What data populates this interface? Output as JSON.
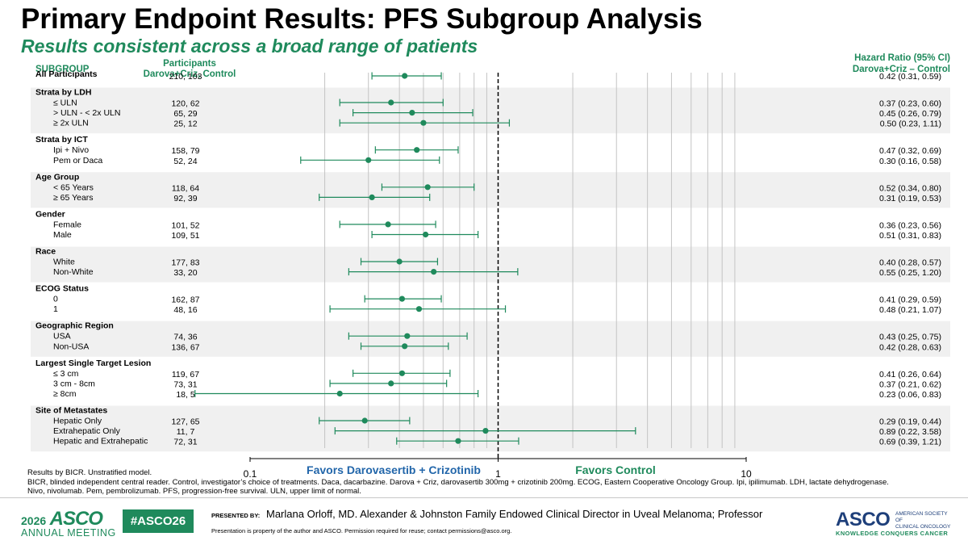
{
  "title": "Primary Endpoint Results: PFS Subgroup Analysis",
  "subtitle": "Results consistent across a broad range of patients",
  "headers": {
    "subgroup": "SUBGROUP",
    "participants_line1": "Participants",
    "participants_line2": "Darova+Criz, Control",
    "hr_line1": "Hazard Ratio (95% CI)",
    "hr_line2": "Darova+Criz – Control"
  },
  "colors": {
    "accent": "#1f8a5c",
    "band": "#f0f0f0",
    "navy": "#1e3f7a",
    "dashed_line": "#000000"
  },
  "chart_data": {
    "type": "forest",
    "x_scale": "log",
    "xlim": [
      0.1,
      10
    ],
    "x_ticks": [
      {
        "value": 0.1,
        "label": "0.1"
      },
      {
        "value": 1,
        "label": "1"
      },
      {
        "value": 10,
        "label": "10"
      }
    ],
    "reference_line": 1,
    "favors_left": "Favors Darovasertib + Crizotinib",
    "favors_right": "Favors Control",
    "groups": [
      {
        "label": "All Participants",
        "rows": [
          {
            "label": "",
            "n": "210, 103",
            "hr": 0.42,
            "lo": 0.31,
            "hi": 0.59,
            "text": "0.42 (0.31, 0.59)"
          }
        ]
      },
      {
        "label": "Strata by LDH",
        "rows": [
          {
            "label": "≤  ULN",
            "n": "120, 62",
            "hr": 0.37,
            "lo": 0.23,
            "hi": 0.6,
            "text": "0.37 (0.23, 0.60)"
          },
          {
            "label": "> ULN - < 2x ULN",
            "n": "65, 29",
            "hr": 0.45,
            "lo": 0.26,
            "hi": 0.79,
            "text": "0.45 (0.26, 0.79)"
          },
          {
            "label": "≥  2x ULN",
            "n": "25, 12",
            "hr": 0.5,
            "lo": 0.23,
            "hi": 1.11,
            "text": "0.50 (0.23, 1.11)"
          }
        ]
      },
      {
        "label": "Strata by ICT",
        "rows": [
          {
            "label": "Ipi + Nivo",
            "n": "158, 79",
            "hr": 0.47,
            "lo": 0.32,
            "hi": 0.69,
            "text": "0.47 (0.32, 0.69)"
          },
          {
            "label": "Pem or Daca",
            "n": "52, 24",
            "hr": 0.3,
            "lo": 0.16,
            "hi": 0.58,
            "text": "0.30 (0.16, 0.58)"
          }
        ]
      },
      {
        "label": "Age Group",
        "rows": [
          {
            "label": "< 65 Years",
            "n": "118, 64",
            "hr": 0.52,
            "lo": 0.34,
            "hi": 0.8,
            "text": "0.52 (0.34, 0.80)"
          },
          {
            "label": "≥  65 Years",
            "n": "92, 39",
            "hr": 0.31,
            "lo": 0.19,
            "hi": 0.53,
            "text": "0.31 (0.19, 0.53)"
          }
        ]
      },
      {
        "label": "Gender",
        "rows": [
          {
            "label": "Female",
            "n": "101, 52",
            "hr": 0.36,
            "lo": 0.23,
            "hi": 0.56,
            "text": "0.36 (0.23, 0.56)"
          },
          {
            "label": "Male",
            "n": "109, 51",
            "hr": 0.51,
            "lo": 0.31,
            "hi": 0.83,
            "text": "0.51 (0.31, 0.83)"
          }
        ]
      },
      {
        "label": "Race",
        "rows": [
          {
            "label": "White",
            "n": "177, 83",
            "hr": 0.4,
            "lo": 0.28,
            "hi": 0.57,
            "text": "0.40 (0.28, 0.57)"
          },
          {
            "label": "Non-White",
            "n": "33, 20",
            "hr": 0.55,
            "lo": 0.25,
            "hi": 1.2,
            "text": "0.55 (0.25, 1.20)"
          }
        ]
      },
      {
        "label": "ECOG Status",
        "rows": [
          {
            "label": "0",
            "n": "162, 87",
            "hr": 0.41,
            "lo": 0.29,
            "hi": 0.59,
            "text": "0.41 (0.29, 0.59)"
          },
          {
            "label": "1",
            "n": "48, 16",
            "hr": 0.48,
            "lo": 0.21,
            "hi": 1.07,
            "text": "0.48 (0.21, 1.07)"
          }
        ]
      },
      {
        "label": "Geographic Region",
        "rows": [
          {
            "label": "USA",
            "n": "74, 36",
            "hr": 0.43,
            "lo": 0.25,
            "hi": 0.75,
            "text": "0.43 (0.25, 0.75)"
          },
          {
            "label": "Non-USA",
            "n": "136, 67",
            "hr": 0.42,
            "lo": 0.28,
            "hi": 0.63,
            "text": "0.42 (0.28, 0.63)"
          }
        ]
      },
      {
        "label": "Largest Single Target Lesion",
        "rows": [
          {
            "label": "≤  3 cm",
            "n": "119, 67",
            "hr": 0.41,
            "lo": 0.26,
            "hi": 0.64,
            "text": "0.41 (0.26, 0.64)"
          },
          {
            "label": "3 cm - 8cm",
            "n": "73, 31",
            "hr": 0.37,
            "lo": 0.21,
            "hi": 0.62,
            "text": "0.37 (0.21, 0.62)"
          },
          {
            "label": "≥  8cm",
            "n": "18, 5",
            "hr": 0.23,
            "lo": 0.06,
            "hi": 0.83,
            "text": "0.23 (0.06, 0.83)"
          }
        ]
      },
      {
        "label": "Site of Metastates",
        "rows": [
          {
            "label": "Hepatic Only",
            "n": "127, 65",
            "hr": 0.29,
            "lo": 0.19,
            "hi": 0.44,
            "text": "0.29 (0.19, 0.44)"
          },
          {
            "label": "Extrahepatic Only",
            "n": "11, 7",
            "hr": 0.89,
            "lo": 0.22,
            "hi": 3.58,
            "text": "0.89 (0.22, 3.58)"
          },
          {
            "label": "Hepatic and Extrahepatic",
            "n": "72, 31",
            "hr": 0.69,
            "lo": 0.39,
            "hi": 1.21,
            "text": "0.69 (0.39, 1.21)"
          }
        ]
      }
    ]
  },
  "footnotes": [
    "Results by BICR. Unstratified model.",
    "BICR, blinded independent central reader. Control, investigator’s choice of treatments. Daca, dacarbazine. Darova + Criz, darovasertib 300mg + crizotinib 200mg. ECOG, Eastern Cooperative Oncology Group. Ipi, ipilimumab.  LDH, lactate dehydrogenase.",
    "Nivo, nivolumab. Pem, pembrolizumab. PFS, progression-free survival. ULN, upper limit of normal."
  ],
  "footer": {
    "year": "2026",
    "asco": "ASCO",
    "annual_meeting": "ANNUAL MEETING",
    "hashtag": "#ASCO26",
    "presented_by": "PRESENTED BY:",
    "presenter": "Marlana Orloff, MD. Alexander & Johnston Family Endowed Clinical Director in Uveal Melanoma; Professor",
    "notice": "Presentation is property of the author and ASCO. Permission required for reuse; contact permissions@asco.org.",
    "society_line1": "AMERICAN SOCIETY OF",
    "society_line2": "CLINICAL ONCOLOGY",
    "tagline": "KNOWLEDGE CONQUERS CANCER"
  }
}
